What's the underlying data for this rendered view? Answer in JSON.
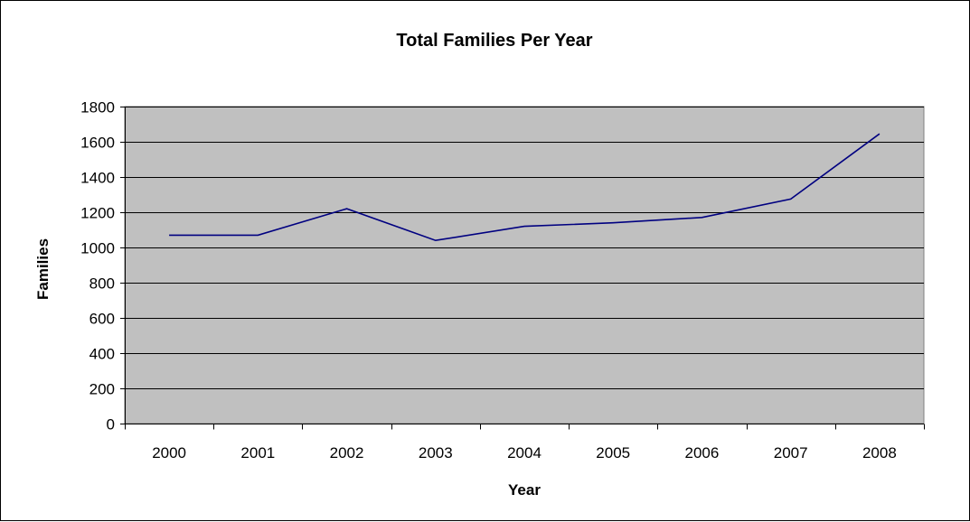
{
  "chart_data": {
    "type": "line",
    "title": "Total Families Per Year",
    "xlabel": "Year",
    "ylabel": "Families",
    "categories": [
      "2000",
      "2001",
      "2002",
      "2003",
      "2004",
      "2005",
      "2006",
      "2007",
      "2008"
    ],
    "series": [
      {
        "values": [
          1070,
          1070,
          1220,
          1040,
          1120,
          1140,
          1170,
          1275,
          1645
        ],
        "color": "#000080"
      }
    ],
    "ylim": [
      0,
      1800
    ],
    "yticks": [
      "0",
      "200",
      "400",
      "600",
      "800",
      "1000",
      "1200",
      "1400",
      "1600",
      "1800"
    ],
    "grid": true,
    "legend": "none",
    "plot_background": "#c0c0c0",
    "gridline_color": "#000000"
  }
}
